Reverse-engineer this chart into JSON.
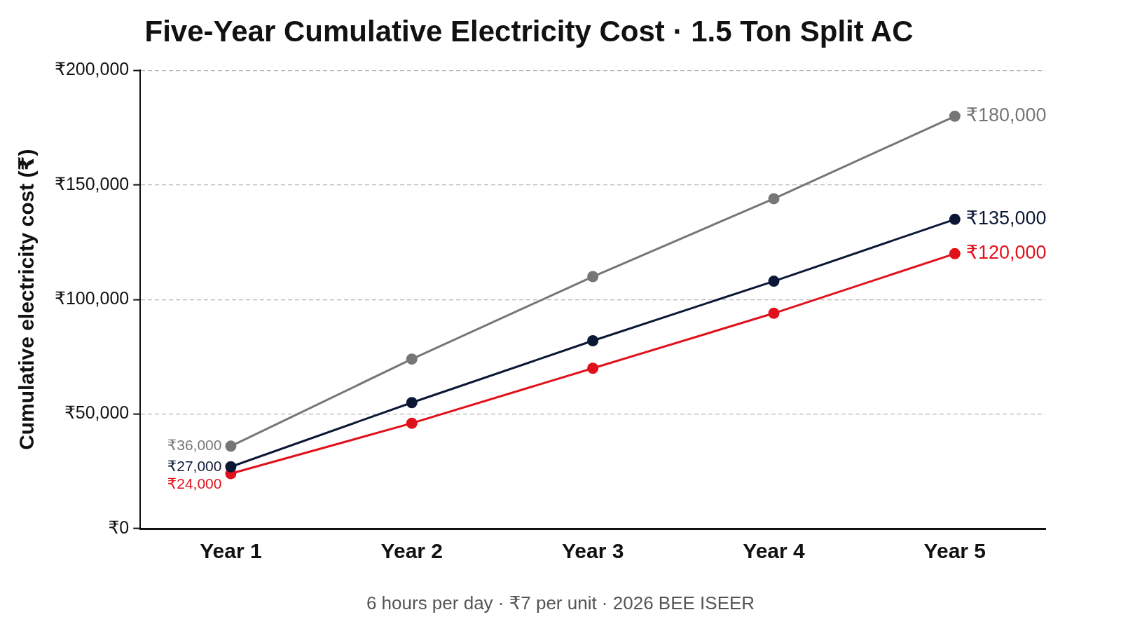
{
  "chart_data": {
    "type": "line",
    "title": "Five-Year Cumulative Electricity Cost · 1.5 Ton Split AC",
    "ylabel": "Cumulative electricity cost (₹)",
    "annotations": [
      "6 hours per day · ₹7 per unit · 2026 BEE ISEER"
    ],
    "categories": [
      "Year 1",
      "Year 2",
      "Year 3",
      "Year 4",
      "Year 5"
    ],
    "series": [
      {
        "color": "#767676",
        "values": [
          36000,
          74000,
          110000,
          144000,
          180000
        ],
        "value_labels": [
          "₹36,000",
          null,
          null,
          null,
          "₹180,000"
        ]
      },
      {
        "color": "#0c1736",
        "values": [
          27000,
          55000,
          82000,
          108000,
          135000
        ],
        "value_labels": [
          "₹27,000",
          null,
          null,
          null,
          "₹135,000"
        ]
      },
      {
        "color": "#e1111c",
        "values": [
          24000,
          46000,
          70000,
          94000,
          120000
        ],
        "value_labels": [
          "₹24,000",
          null,
          null,
          null,
          "₹120,000"
        ]
      }
    ],
    "ylim": [
      0,
      200000
    ],
    "yticks": [
      {
        "value": 0,
        "label": "₹0"
      },
      {
        "value": 50000,
        "label": "₹50,000"
      },
      {
        "value": 100000,
        "label": "₹100,000"
      },
      {
        "value": 150000,
        "label": "₹150,000"
      },
      {
        "value": 200000,
        "label": "₹200,000"
      }
    ],
    "grid": "y",
    "legend": false,
    "marker": "circle",
    "line_style": "solid"
  }
}
